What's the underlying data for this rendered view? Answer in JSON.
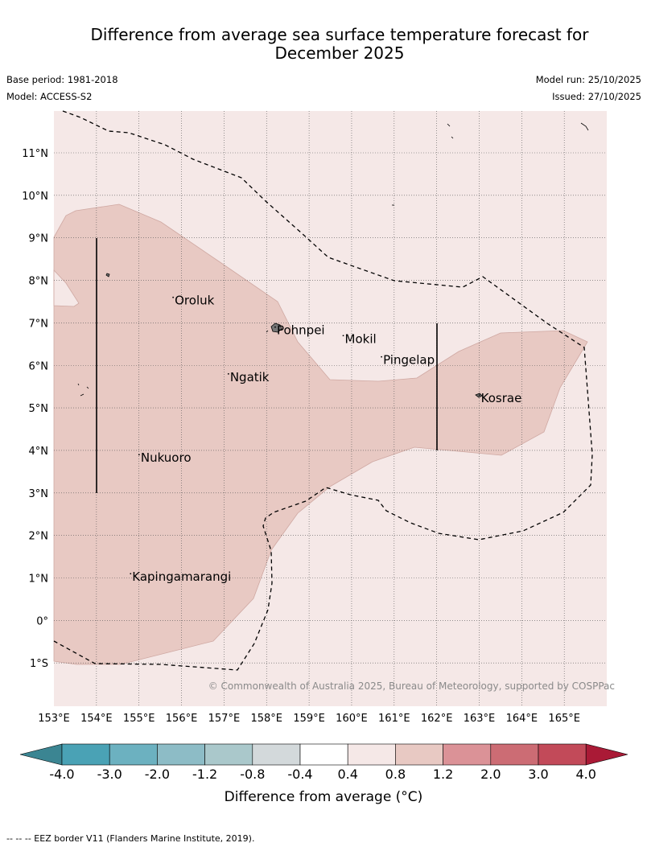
{
  "title_line1": "Difference from average sea surface temperature forecast for",
  "title_line2": "December 2025",
  "base_period": "Base period: 1981-2018",
  "model": "Model: ACCESS-S2",
  "model_run": "Model run: 25/10/2025",
  "issued": "Issued: 27/10/2025",
  "copyright": "© Commonwealth of Australia 2025, Bureau of Meteorology, supported by COSPPac",
  "map": {
    "lon_range": [
      153,
      166
    ],
    "lat_range": [
      -2,
      12
    ],
    "lon_ticks": [
      "153°E",
      "154°E",
      "155°E",
      "156°E",
      "157°E",
      "158°E",
      "159°E",
      "160°E",
      "161°E",
      "162°E",
      "163°E",
      "164°E",
      "165°E"
    ],
    "lat_ticks": [
      "11°N",
      "10°N",
      "9°N",
      "8°N",
      "7°N",
      "6°N",
      "5°N",
      "4°N",
      "3°N",
      "2°N",
      "1°N",
      "0°",
      "1°S"
    ],
    "places": [
      {
        "name": "Oroluk",
        "lon": 155.8,
        "lat": 7.6
      },
      {
        "name": "Pohnpei",
        "lon": 158.2,
        "lat": 6.9
      },
      {
        "name": "Mokil",
        "lon": 159.8,
        "lat": 6.7
      },
      {
        "name": "Pingelap",
        "lon": 160.7,
        "lat": 6.2
      },
      {
        "name": "Ngatik",
        "lon": 157.1,
        "lat": 5.8
      },
      {
        "name": "Kosrae",
        "lon": 163.0,
        "lat": 5.3
      },
      {
        "name": "Nukuoro",
        "lon": 155.0,
        "lat": 3.9
      },
      {
        "name": "Kapingamarangi",
        "lon": 154.8,
        "lat": 1.1
      }
    ],
    "background_class_color": "#f5e8e7",
    "anomaly_class_color": "#e8c9c3"
  },
  "colorbar": {
    "ticks": [
      "-4.0",
      "-3.0",
      "-2.0",
      "-1.2",
      "-0.8",
      "-0.4",
      "0.4",
      "0.8",
      "1.2",
      "2.0",
      "3.0",
      "4.0"
    ],
    "colors": [
      "#4aa2b5",
      "#6cb1c0",
      "#8dbcc6",
      "#aac8cb",
      "#d3d9db",
      "#ffffff",
      "#f5e8e7",
      "#e8c9c3",
      "#db9297",
      "#cc6c74",
      "#c24a59"
    ],
    "under_color": "#3b8592",
    "over_color": "#aa1a36",
    "label": "Difference from average (°C)"
  },
  "footer": "--  --  -- EEZ border V11 (Flanders Marine Institute, 2019)."
}
